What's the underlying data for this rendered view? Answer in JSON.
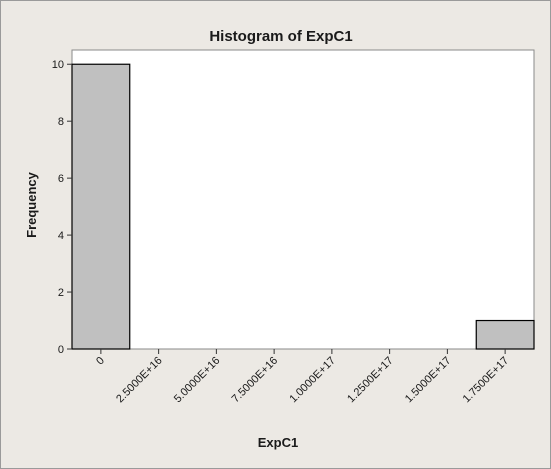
{
  "chart_data": {
    "type": "bar",
    "title": "Histogram of ExpC1",
    "xlabel": "ExpC1",
    "ylabel": "Frequency",
    "ylim": [
      0,
      10.5
    ],
    "y_ticks": [
      "0",
      "2",
      "4",
      "6",
      "8",
      "10"
    ],
    "y_tick_values": [
      0,
      2,
      4,
      6,
      8,
      10
    ],
    "x_range": [
      -1.25e+16,
      1.875e+17
    ],
    "x_ticks": [
      "0",
      "2.5000E+16",
      "5.0000E+16",
      "7.5000E+16",
      "1.0000E+17",
      "1.2500E+17",
      "1.5000E+17",
      "1.7500E+17"
    ],
    "x_tick_values": [
      0,
      2.5e+16,
      5e+16,
      7.5e+16,
      1e+17,
      1.25e+17,
      1.5e+17,
      1.75e+17
    ],
    "bins": [
      {
        "center": 0,
        "width": 2.5e+16,
        "count": 10
      },
      {
        "center": 1.75e+17,
        "width": 2.5e+16,
        "count": 1
      }
    ],
    "grid": false,
    "colors": {
      "bar_fill": "#c0c0c0",
      "bar_stroke": "#000000",
      "background": "#ece9e4",
      "plot_area": "#ffffff"
    }
  }
}
